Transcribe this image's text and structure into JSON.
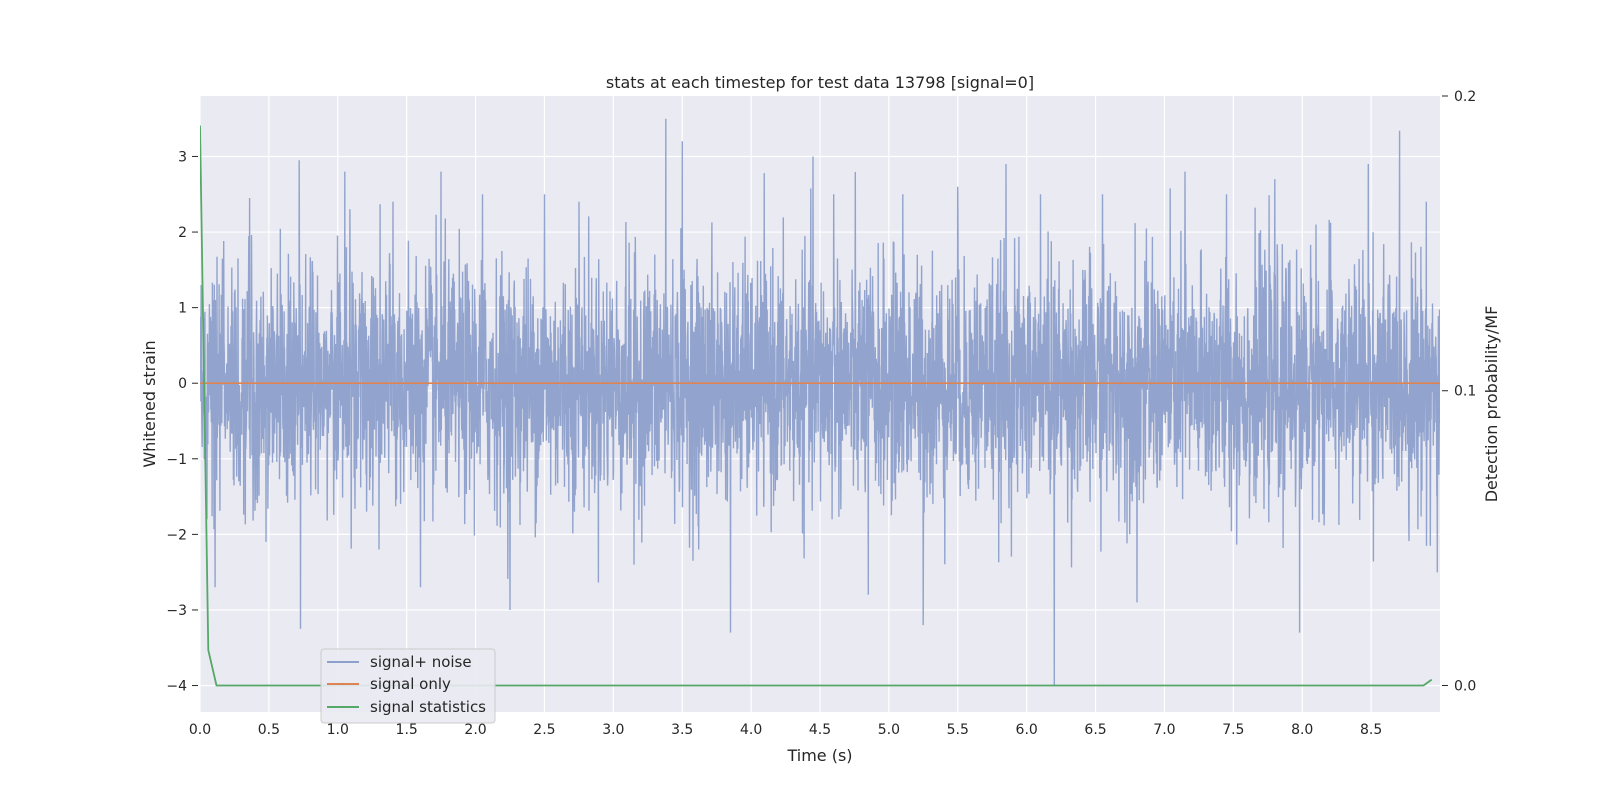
{
  "chart_data": {
    "type": "line",
    "title": "stats at each timestep for test data 13798 [signal=0]",
    "xlabel": "Time (s)",
    "ylabel": "Whitened strain",
    "y2label": "Detection probability/MF",
    "xlim": [
      0.0,
      9.0
    ],
    "ylim": [
      -4.35,
      3.8
    ],
    "y2lim": [
      -0.009,
      0.2
    ],
    "x_ticks": [
      0.0,
      0.5,
      1.0,
      1.5,
      2.0,
      2.5,
      3.0,
      3.5,
      4.0,
      4.5,
      5.0,
      5.5,
      6.0,
      6.5,
      7.0,
      7.5,
      8.0,
      8.5
    ],
    "x_tick_labels": [
      "0.0",
      "0.5",
      "1.0",
      "1.5",
      "2.0",
      "2.5",
      "3.0",
      "3.5",
      "4.0",
      "4.5",
      "5.0",
      "5.5",
      "6.0",
      "6.5",
      "7.0",
      "7.5",
      "8.0",
      "8.5"
    ],
    "y_ticks": [
      -4,
      -3,
      -2,
      -1,
      0,
      1,
      2,
      3
    ],
    "y_tick_labels": [
      "−4",
      "−3",
      "−2",
      "−1",
      "0",
      "1",
      "2",
      "3"
    ],
    "y2_ticks": [
      0.0,
      0.1,
      0.2
    ],
    "y2_tick_labels": [
      "0.0",
      "0.1",
      "0.2"
    ],
    "grid": true,
    "legend_position": "lower-left",
    "series": [
      {
        "name": "signal+ noise",
        "axis": "left",
        "color": "#8da0cb",
        "description": "dense whitened noise, roughly within -2.5..2.5 with spikes",
        "spikes": [
          [
            0.05,
            2.8
          ],
          [
            0.05,
            -1.8
          ],
          [
            0.11,
            -2.7
          ],
          [
            0.36,
            2.45
          ],
          [
            0.48,
            -2.1
          ],
          [
            0.72,
            2.95
          ],
          [
            0.73,
            -3.25
          ],
          [
            1.05,
            2.8
          ],
          [
            1.3,
            -2.2
          ],
          [
            1.4,
            2.4
          ],
          [
            1.6,
            -2.7
          ],
          [
            1.75,
            2.8
          ],
          [
            2.05,
            2.5
          ],
          [
            2.25,
            -3.0
          ],
          [
            2.5,
            2.5
          ],
          [
            2.75,
            2.4
          ],
          [
            3.15,
            -2.4
          ],
          [
            3.38,
            3.5
          ],
          [
            3.5,
            3.2
          ],
          [
            3.62,
            -2.2
          ],
          [
            3.85,
            -3.3
          ],
          [
            4.45,
            3.0
          ],
          [
            4.6,
            2.5
          ],
          [
            4.85,
            -2.8
          ],
          [
            5.1,
            2.5
          ],
          [
            5.25,
            -3.2
          ],
          [
            5.5,
            2.6
          ],
          [
            5.85,
            2.9
          ],
          [
            6.1,
            2.5
          ],
          [
            6.2,
            -4.0
          ],
          [
            6.55,
            2.5
          ],
          [
            6.8,
            -2.9
          ],
          [
            7.15,
            2.8
          ],
          [
            7.45,
            2.5
          ],
          [
            7.8,
            2.7
          ],
          [
            7.98,
            -3.3
          ],
          [
            8.1,
            2.1
          ],
          [
            8.48,
            2.9
          ],
          [
            8.9,
            2.4
          ],
          [
            8.98,
            -2.5
          ]
        ]
      },
      {
        "name": "signal only",
        "axis": "left",
        "color": "#dd8452",
        "x": [
          0.0,
          9.0
        ],
        "y": [
          0.0,
          0.0
        ]
      },
      {
        "name": "signal statistics",
        "axis": "right",
        "color": "#55a868",
        "x": [
          0.0,
          0.06,
          0.12,
          8.88,
          8.94
        ],
        "y": [
          0.19,
          0.012,
          0.0,
          0.0,
          0.002
        ]
      }
    ]
  }
}
